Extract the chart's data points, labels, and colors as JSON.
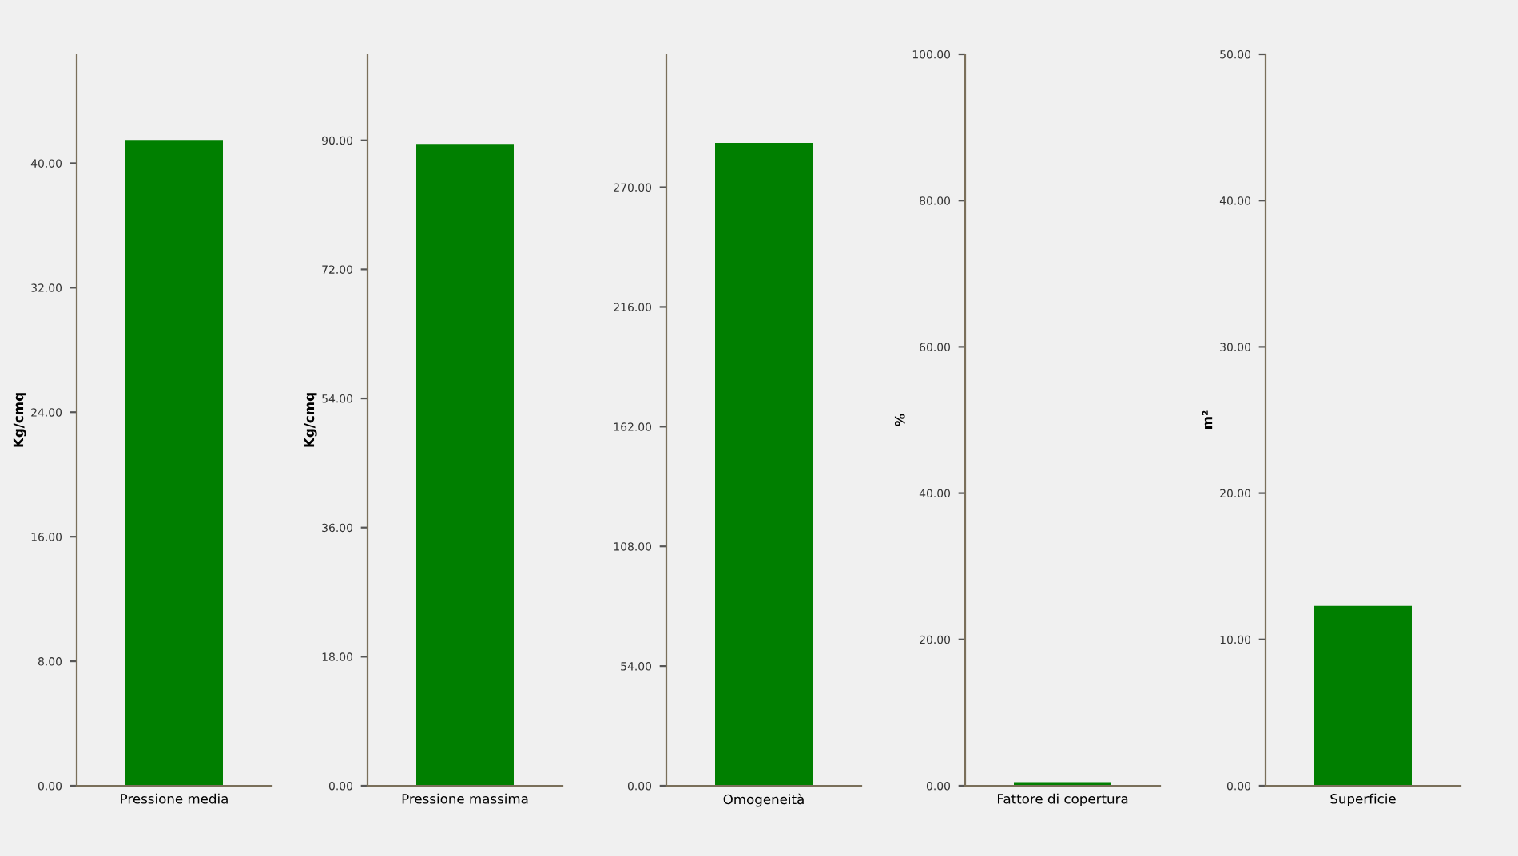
{
  "chart_data": [
    {
      "type": "bar",
      "ylabel": "Kg/cmq",
      "categories": [
        "Pressione media"
      ],
      "values": [
        41.5
      ],
      "color": "#007f00",
      "ylim": [
        0,
        47
      ],
      "yticks": [
        {
          "value": 0,
          "label": "0.00"
        },
        {
          "value": 8,
          "label": "8.00"
        },
        {
          "value": 16,
          "label": "16.00"
        },
        {
          "value": 24,
          "label": "24.00"
        },
        {
          "value": 32,
          "label": "32.00"
        },
        {
          "value": 40,
          "label": "40.00"
        }
      ],
      "grid": false,
      "legend": false
    },
    {
      "type": "bar",
      "ylabel": "Kg/cmq",
      "categories": [
        "Pressione massima"
      ],
      "values": [
        89.5
      ],
      "color": "#007f00",
      "ylim": [
        0,
        102
      ],
      "yticks": [
        {
          "value": 0,
          "label": "0.00"
        },
        {
          "value": 18,
          "label": "18.00"
        },
        {
          "value": 36,
          "label": "36.00"
        },
        {
          "value": 54,
          "label": "54.00"
        },
        {
          "value": 72,
          "label": "72.00"
        },
        {
          "value": 90,
          "label": "90.00"
        }
      ],
      "grid": false,
      "legend": false
    },
    {
      "type": "bar",
      "categories": [
        "Omogeneità"
      ],
      "values": [
        290
      ],
      "color": "#007f00",
      "ylim": [
        0,
        330
      ],
      "yticks": [
        {
          "value": 0,
          "label": "0.00"
        },
        {
          "value": 54,
          "label": "54.00"
        },
        {
          "value": 108,
          "label": "108.00"
        },
        {
          "value": 162,
          "label": "162.00"
        },
        {
          "value": 216,
          "label": "216.00"
        },
        {
          "value": 270,
          "label": "270.00"
        }
      ],
      "grid": false,
      "legend": false
    },
    {
      "type": "bar",
      "ylabel": "%",
      "categories": [
        "Fattore di copertura"
      ],
      "values": [
        0.5
      ],
      "color": "#007f00",
      "ylim": [
        0,
        100
      ],
      "yticks": [
        {
          "value": 0,
          "label": "0.00"
        },
        {
          "value": 20,
          "label": "20.00"
        },
        {
          "value": 40,
          "label": "40.00"
        },
        {
          "value": 60,
          "label": "60.00"
        },
        {
          "value": 80,
          "label": "80.00"
        },
        {
          "value": 100,
          "label": "100.00"
        }
      ],
      "grid": false,
      "legend": false
    },
    {
      "type": "bar",
      "ylabel": "m²",
      "categories": [
        "Superficie"
      ],
      "values": [
        12.3
      ],
      "color": "#007f00",
      "ylim": [
        0,
        50
      ],
      "yticks": [
        {
          "value": 0,
          "label": "0.00"
        },
        {
          "value": 10,
          "label": "10.00"
        },
        {
          "value": 20,
          "label": "20.00"
        },
        {
          "value": 30,
          "label": "30.00"
        },
        {
          "value": 40,
          "label": "40.00"
        },
        {
          "value": 50,
          "label": "50.00"
        }
      ],
      "grid": false,
      "legend": false
    }
  ]
}
